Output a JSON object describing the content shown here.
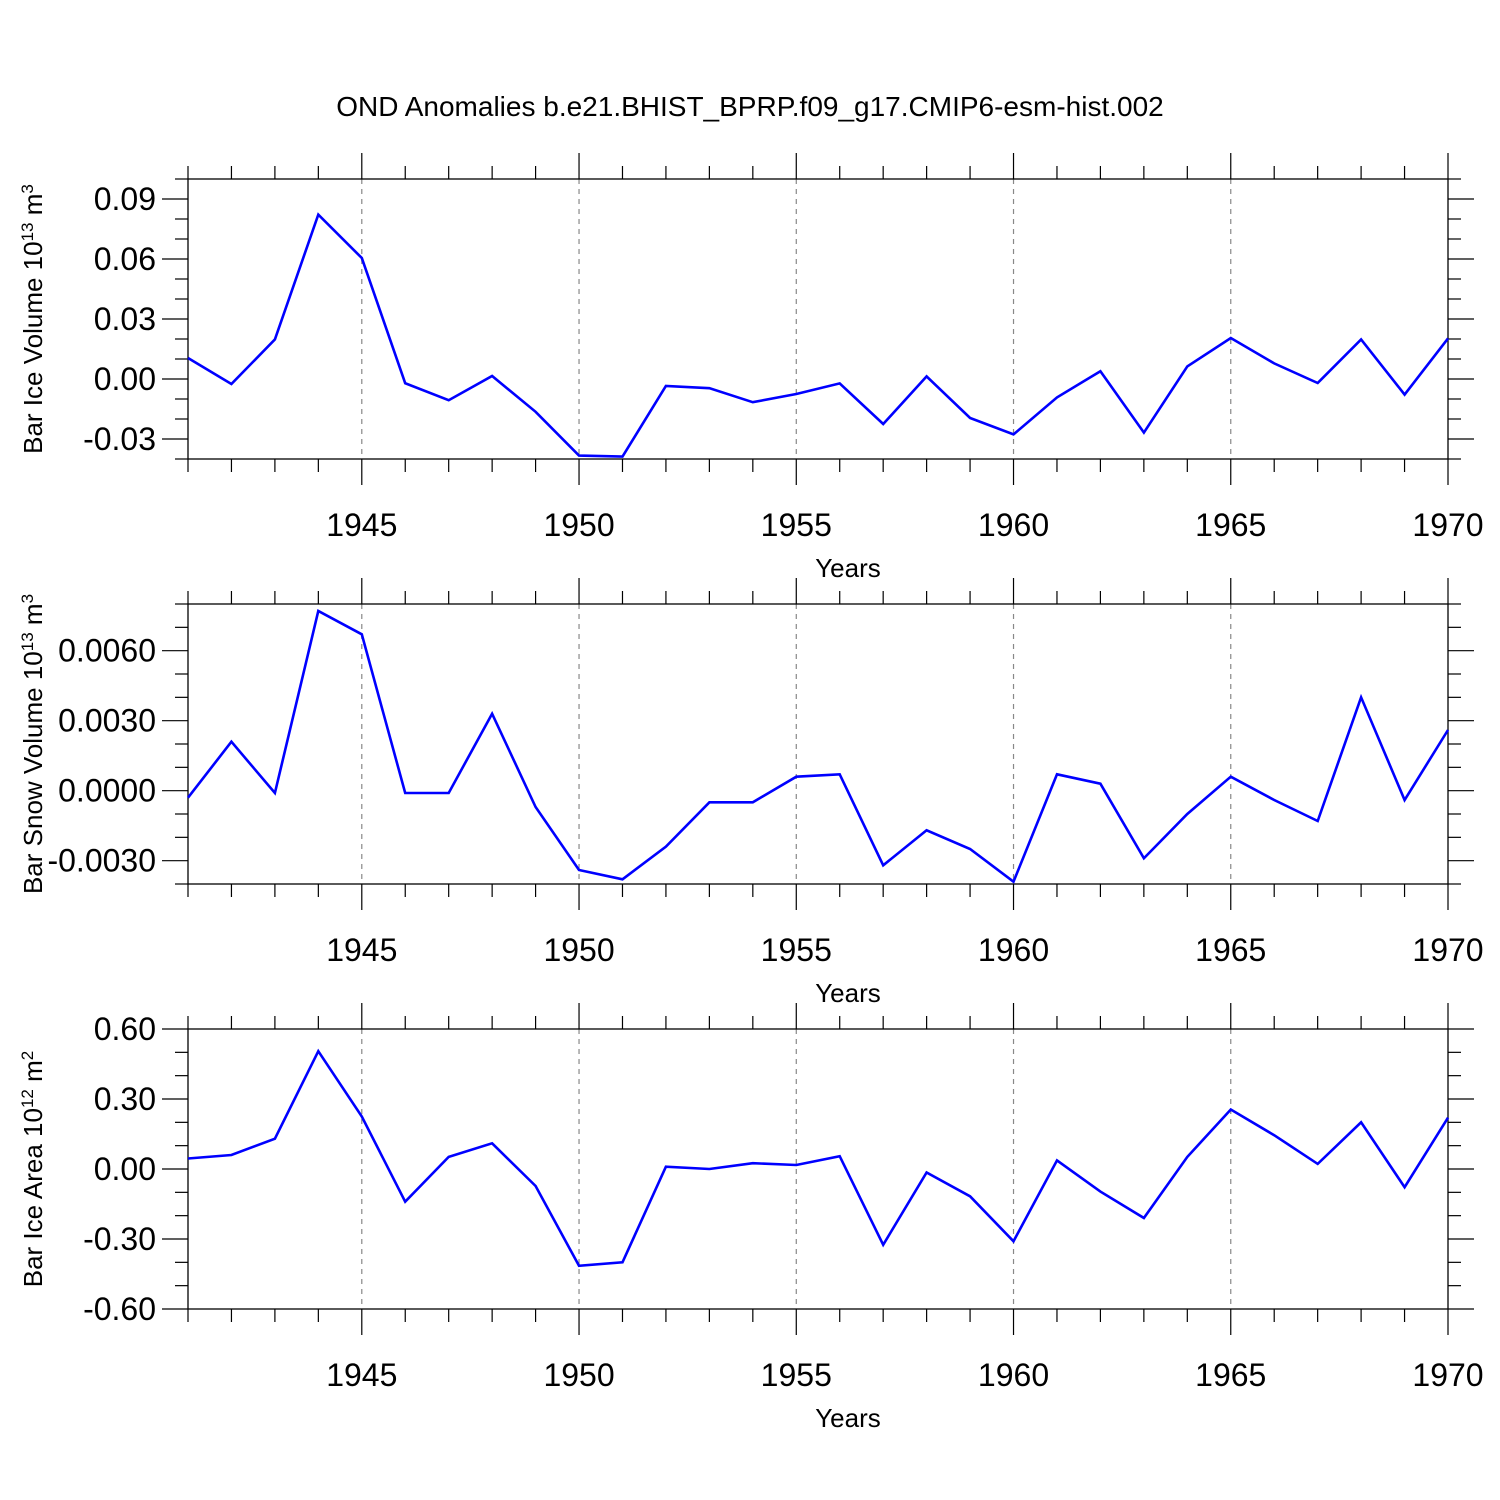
{
  "chart_data": [
    {
      "type": "line",
      "title": "OND Anomalies b.e21.BHIST_BPRP.f09_g17.CMIP6-esm-hist.002",
      "ylabel": "Bar Ice Volume 10",
      "ylabel_exp": "13",
      "ylabel_unit": " m",
      "ylabel_unit_exp": "3",
      "xlabel": "Years",
      "xlim": [
        1941,
        1970
      ],
      "ylim": [
        -0.04,
        0.1
      ],
      "xticks": [
        1945,
        1950,
        1955,
        1960,
        1965,
        1970
      ],
      "xtick_labels": [
        "1945",
        "1950",
        "1955",
        "1960",
        "1965",
        "1970"
      ],
      "yticks": [
        -0.03,
        0.0,
        0.03,
        0.06,
        0.09
      ],
      "ytick_labels": [
        "-0.03",
        "0.00",
        "0.03",
        "0.06",
        "0.09"
      ],
      "y_minor_step": 0.01,
      "color": "#0000ff",
      "series": [
        {
          "name": "Bar Ice Volume",
          "x": [
            1941,
            1942,
            1943,
            1944,
            1945,
            1946,
            1947,
            1948,
            1949,
            1950,
            1951,
            1952,
            1953,
            1954,
            1955,
            1956,
            1957,
            1958,
            1959,
            1960,
            1961,
            1962,
            1963,
            1964,
            1965,
            1966,
            1967,
            1968,
            1969,
            1970
          ],
          "values": [
            0.0105,
            -0.0025,
            0.0198,
            0.0822,
            0.0605,
            -0.0021,
            -0.0106,
            0.0015,
            -0.0164,
            -0.0383,
            -0.0388,
            -0.0035,
            -0.0046,
            -0.0116,
            -0.0075,
            -0.0022,
            -0.0225,
            0.0013,
            -0.0195,
            -0.0277,
            -0.0092,
            0.0039,
            -0.0268,
            0.0063,
            0.0205,
            0.0078,
            -0.002,
            0.0198,
            -0.0078,
            0.0203
          ]
        }
      ]
    },
    {
      "type": "line",
      "ylabel": "Bar Snow Volume 10",
      "ylabel_exp": "13",
      "ylabel_unit": " m",
      "ylabel_unit_exp": "3",
      "xlabel": "Years",
      "xlim": [
        1941,
        1970
      ],
      "ylim": [
        -0.004,
        0.008
      ],
      "xticks": [
        1945,
        1950,
        1955,
        1960,
        1965,
        1970
      ],
      "xtick_labels": [
        "1945",
        "1950",
        "1955",
        "1960",
        "1965",
        "1970"
      ],
      "yticks": [
        -0.003,
        0.0,
        0.003,
        0.006
      ],
      "ytick_labels": [
        "-0.0030",
        "0.0000",
        "0.0030",
        "0.0060"
      ],
      "y_minor_step": 0.001,
      "color": "#0000ff",
      "series": [
        {
          "name": "Bar Snow Volume",
          "x": [
            1941,
            1942,
            1943,
            1944,
            1945,
            1946,
            1947,
            1948,
            1949,
            1950,
            1951,
            1952,
            1953,
            1954,
            1955,
            1956,
            1957,
            1958,
            1959,
            1960,
            1961,
            1962,
            1963,
            1964,
            1965,
            1966,
            1967,
            1968,
            1969,
            1970
          ],
          "values": [
            -0.0003,
            0.0021,
            -0.0001,
            0.0077,
            0.0067,
            -0.0001,
            -0.0001,
            0.0033,
            -0.0007,
            -0.0034,
            -0.0038,
            -0.0024,
            -0.0005,
            -0.0005,
            0.0006,
            0.0007,
            -0.0032,
            -0.0017,
            -0.0025,
            -0.0039,
            0.0007,
            0.0003,
            -0.0029,
            -0.001,
            0.0006,
            -0.0004,
            -0.0013,
            0.004,
            -0.0004,
            0.0026
          ]
        }
      ]
    },
    {
      "type": "line",
      "ylabel": "Bar Ice Area 10",
      "ylabel_exp": "12",
      "ylabel_unit": " m",
      "ylabel_unit_exp": "2",
      "xlabel": "Years",
      "xlim": [
        1941,
        1970
      ],
      "ylim": [
        -0.6,
        0.6
      ],
      "xticks": [
        1945,
        1950,
        1955,
        1960,
        1965,
        1970
      ],
      "xtick_labels": [
        "1945",
        "1950",
        "1955",
        "1960",
        "1965",
        "1970"
      ],
      "yticks": [
        -0.6,
        -0.3,
        0.0,
        0.3,
        0.6
      ],
      "ytick_labels": [
        "-0.60",
        "-0.30",
        "0.00",
        "0.30",
        "0.60"
      ],
      "y_minor_step": 0.1,
      "color": "#0000ff",
      "series": [
        {
          "name": "Bar Ice Area",
          "x": [
            1941,
            1942,
            1943,
            1944,
            1945,
            1946,
            1947,
            1948,
            1949,
            1950,
            1951,
            1952,
            1953,
            1954,
            1955,
            1956,
            1957,
            1958,
            1959,
            1960,
            1961,
            1962,
            1963,
            1964,
            1965,
            1966,
            1967,
            1968,
            1969,
            1970
          ],
          "values": [
            0.045,
            0.06,
            0.13,
            0.505,
            0.225,
            -0.14,
            0.052,
            0.11,
            -0.073,
            -0.415,
            -0.4,
            0.01,
            0.0,
            0.025,
            0.017,
            0.055,
            -0.325,
            -0.015,
            -0.117,
            -0.31,
            0.037,
            -0.097,
            -0.21,
            0.052,
            0.255,
            0.145,
            0.022,
            0.2,
            -0.078,
            0.22
          ]
        }
      ]
    }
  ]
}
